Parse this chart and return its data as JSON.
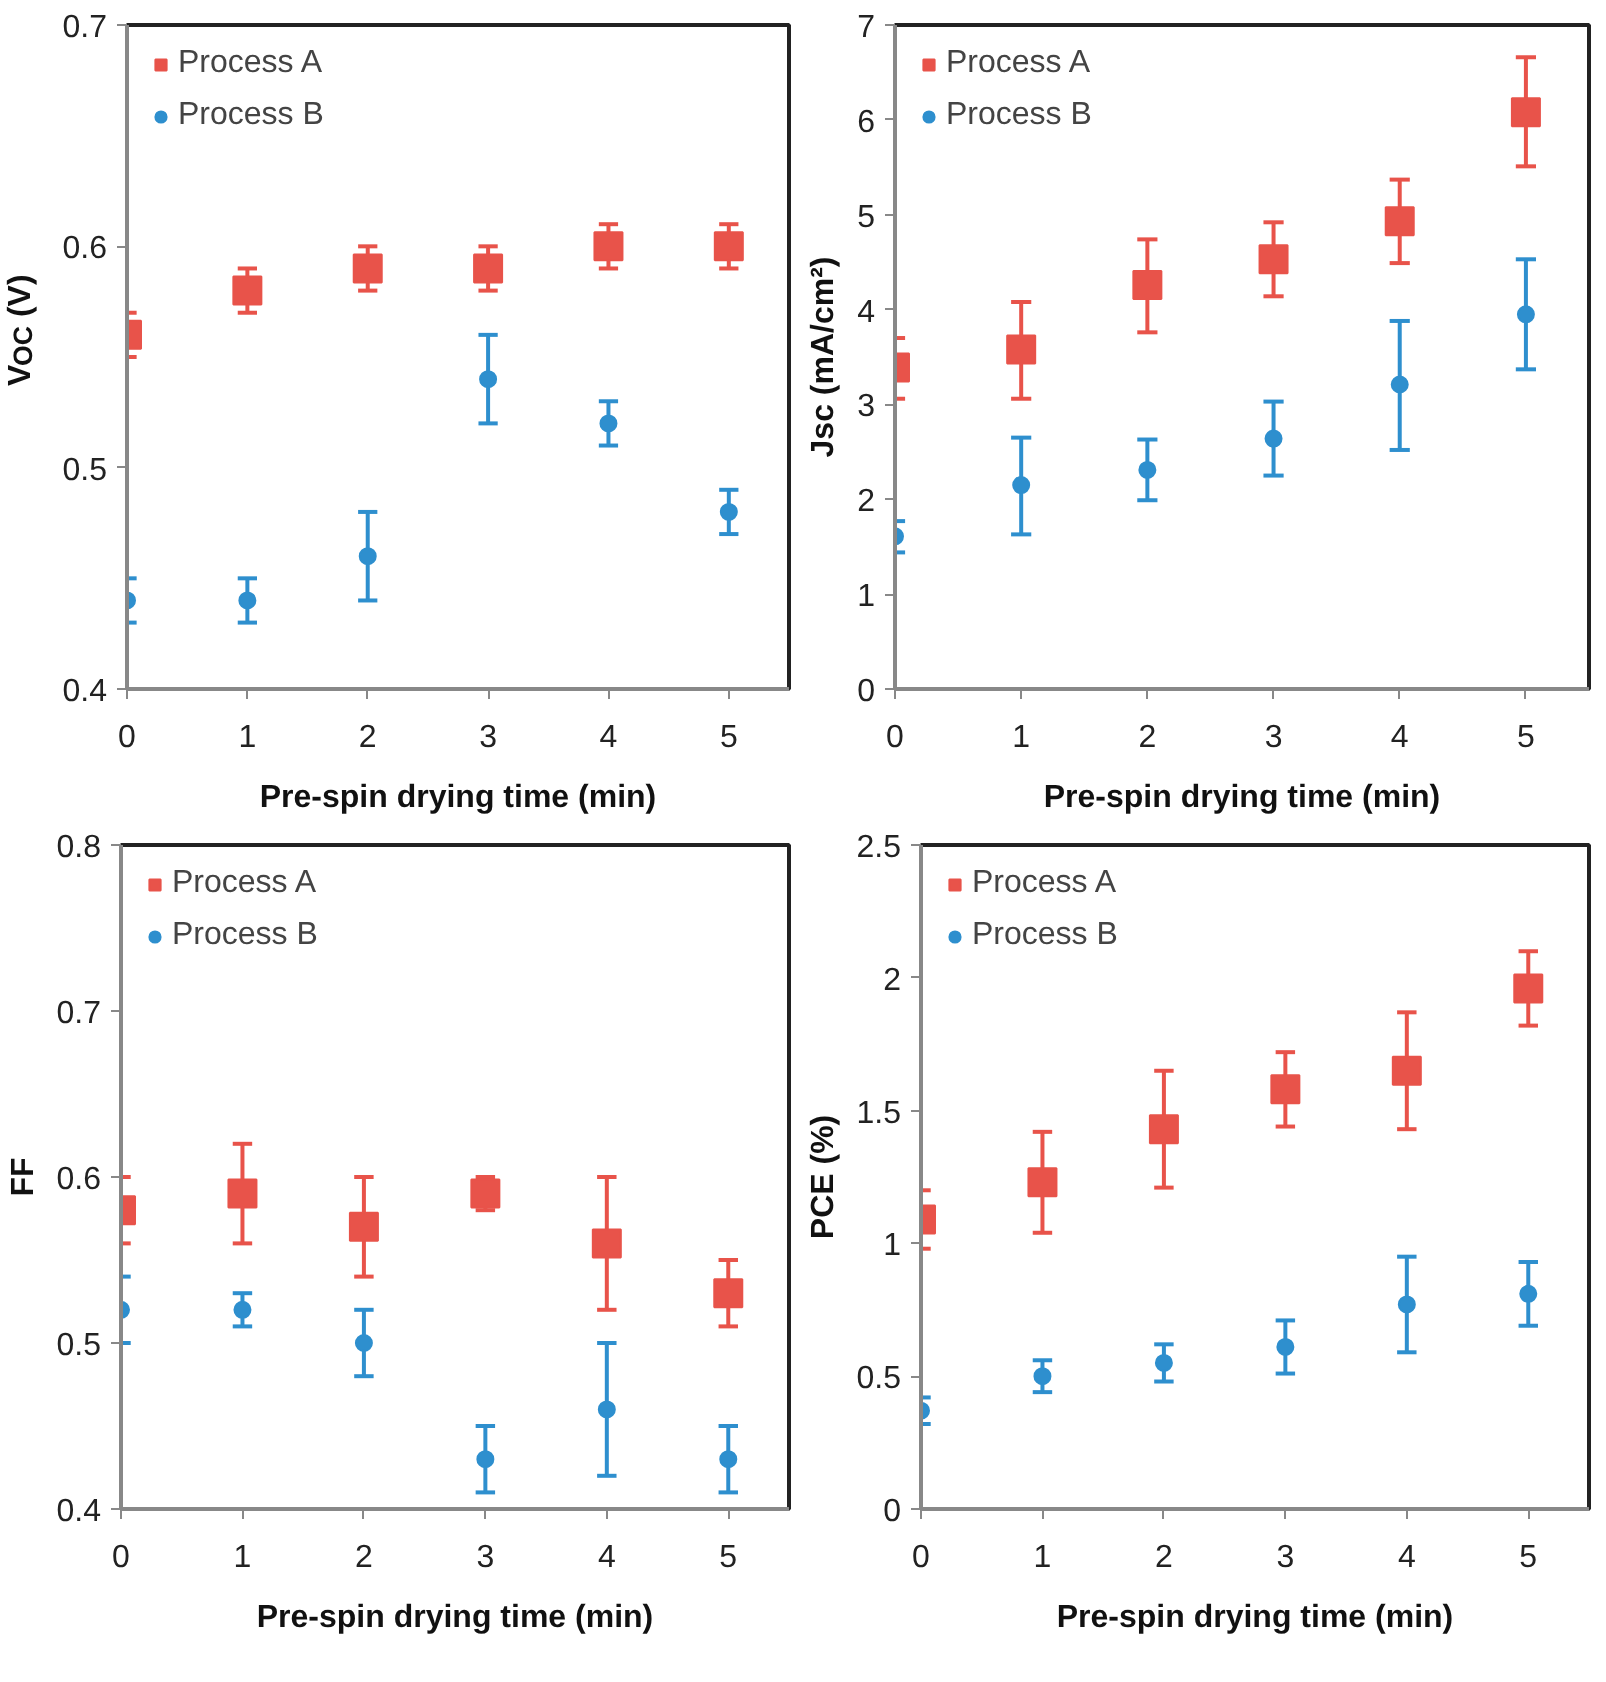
{
  "chart_data": [
    {
      "type": "scatter",
      "xlabel": "Pre-spin drying time (min)",
      "ylabel": "V$_{OC}$ (V)",
      "x": [
        0,
        1,
        2,
        3,
        4,
        5
      ],
      "xlim": [
        0,
        5.5
      ],
      "xticks": [
        0,
        1,
        2,
        3,
        4,
        5
      ],
      "ylim": [
        0.4,
        0.7
      ],
      "yticks": [
        0.4,
        0.5,
        0.6,
        0.7
      ],
      "grid": false,
      "legend": "top left",
      "series": [
        {
          "name": "Process A",
          "color": "#e8534a",
          "marker": "square",
          "values": [
            0.56,
            0.58,
            0.59,
            0.59,
            0.6,
            0.6
          ],
          "errors": [
            0.01,
            0.01,
            0.01,
            0.01,
            0.01,
            0.01
          ]
        },
        {
          "name": "Process B",
          "color": "#2e8fce",
          "marker": "circle",
          "values": [
            0.44,
            0.44,
            0.46,
            0.54,
            0.52,
            0.48
          ],
          "errors": [
            0.01,
            0.01,
            0.02,
            0.02,
            0.01,
            0.01
          ]
        }
      ]
    },
    {
      "type": "scatter",
      "xlabel": "Pre-spin drying time (min)",
      "ylabel": "Jsc (mA/cm²)",
      "x": [
        0,
        1,
        2,
        3,
        4,
        5
      ],
      "xlim": [
        0,
        5.5
      ],
      "xticks": [
        0,
        1,
        2,
        3,
        4,
        5
      ],
      "ylim": [
        0,
        7
      ],
      "yticks": [
        0,
        1,
        2,
        3,
        4,
        5,
        6,
        7
      ],
      "grid": false,
      "legend": "top left",
      "series": [
        {
          "name": "Process A",
          "color": "#e8534a",
          "marker": "square",
          "values": [
            3.39,
            3.58,
            4.26,
            4.53,
            4.93,
            6.08
          ],
          "errors": [
            [
              3.06,
              3.7
            ],
            [
              3.06,
              4.08
            ],
            [
              3.76,
              4.74
            ],
            [
              4.14,
              4.92
            ],
            [
              4.49,
              5.37
            ],
            [
              5.51,
              6.66
            ]
          ]
        },
        {
          "name": "Process B",
          "color": "#2e8fce",
          "marker": "circle",
          "values": [
            1.61,
            2.15,
            2.31,
            2.64,
            3.21,
            3.95
          ],
          "errors": [
            [
              1.44,
              1.77
            ],
            [
              1.63,
              2.65
            ],
            [
              1.99,
              2.63
            ],
            [
              2.25,
              3.03
            ],
            [
              2.52,
              3.88
            ],
            [
              3.37,
              4.53
            ]
          ]
        }
      ]
    },
    {
      "type": "scatter",
      "xlabel": "Pre-spin drying time (min)",
      "ylabel": "FF",
      "x": [
        0,
        1,
        2,
        3,
        4,
        5
      ],
      "xlim": [
        0,
        5.5
      ],
      "xticks": [
        0,
        1,
        2,
        3,
        4,
        5
      ],
      "ylim": [
        0.4,
        0.8
      ],
      "yticks": [
        0.4,
        0.5,
        0.6,
        0.7,
        0.8
      ],
      "grid": false,
      "legend": "top left",
      "series": [
        {
          "name": "Process A",
          "color": "#e8534a",
          "marker": "square",
          "values": [
            0.58,
            0.59,
            0.57,
            0.59,
            0.56,
            0.53
          ],
          "errors": [
            0.02,
            0.03,
            0.03,
            0.01,
            0.04,
            0.02
          ]
        },
        {
          "name": "Process B",
          "color": "#2e8fce",
          "marker": "circle",
          "values": [
            0.52,
            0.52,
            0.5,
            0.43,
            0.46,
            0.43
          ],
          "errors": [
            0.02,
            0.01,
            0.02,
            0.02,
            0.04,
            0.02
          ]
        }
      ]
    },
    {
      "type": "scatter",
      "xlabel": "Pre-spin drying time (min)",
      "ylabel": "PCE (%)",
      "x": [
        0,
        1,
        2,
        3,
        4,
        5
      ],
      "xlim": [
        0,
        5.5
      ],
      "xticks": [
        0,
        1,
        2,
        3,
        4,
        5
      ],
      "ylim": [
        0,
        2.5
      ],
      "yticks": [
        0,
        0.5,
        1,
        1.5,
        2,
        2.5
      ],
      "grid": false,
      "legend": "top left",
      "series": [
        {
          "name": "Process A",
          "color": "#e8534a",
          "marker": "square",
          "values": [
            1.09,
            1.23,
            1.43,
            1.58,
            1.65,
            1.96
          ],
          "errors": [
            [
              0.98,
              1.2
            ],
            [
              1.04,
              1.42
            ],
            [
              1.21,
              1.65
            ],
            [
              1.44,
              1.72
            ],
            [
              1.43,
              1.87
            ],
            [
              1.82,
              2.1
            ]
          ]
        },
        {
          "name": "Process B",
          "color": "#2e8fce",
          "marker": "circle",
          "values": [
            0.37,
            0.5,
            0.55,
            0.61,
            0.77,
            0.81
          ],
          "errors": [
            [
              0.32,
              0.42
            ],
            [
              0.44,
              0.56
            ],
            [
              0.48,
              0.62
            ],
            [
              0.51,
              0.71
            ],
            [
              0.59,
              0.95
            ],
            [
              0.69,
              0.93
            ]
          ]
        }
      ]
    }
  ]
}
